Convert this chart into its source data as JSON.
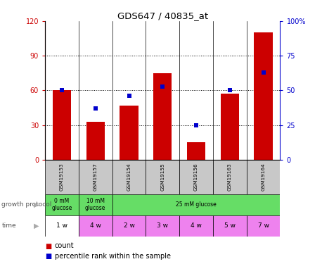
{
  "title": "GDS647 / 40835_at",
  "categories": [
    "GSM19153",
    "GSM19157",
    "GSM19154",
    "GSM19155",
    "GSM19156",
    "GSM19163",
    "GSM19164"
  ],
  "bar_values": [
    60,
    33,
    47,
    75,
    15,
    57,
    110
  ],
  "percentile_values": [
    50,
    37,
    46,
    53,
    25,
    50,
    63
  ],
  "bar_color": "#cc0000",
  "marker_color": "#0000cc",
  "left_ylim": [
    0,
    120
  ],
  "right_ylim": [
    0,
    100
  ],
  "left_yticks": [
    0,
    30,
    60,
    90,
    120
  ],
  "right_yticks": [
    0,
    25,
    50,
    75,
    100
  ],
  "right_yticklabels": [
    "0",
    "25",
    "50",
    "75",
    "100%"
  ],
  "time_labels": [
    "1 w",
    "4 w",
    "2 w",
    "3 w",
    "4 w",
    "5 w",
    "7 w"
  ],
  "time_colors": [
    "#ffffff",
    "#ee82ee",
    "#ee82ee",
    "#ee82ee",
    "#ee82ee",
    "#ee82ee",
    "#ee82ee"
  ],
  "sample_color": "#c8c8c8",
  "green_color": "#66dd66",
  "left_axis_color": "#cc0000",
  "right_axis_color": "#0000cc",
  "bar_width": 0.55,
  "proto_data": [
    [
      0,
      1,
      "0 mM\nglucose"
    ],
    [
      1,
      2,
      "10 mM\nglucose"
    ],
    [
      2,
      7,
      "25 mM glucose"
    ]
  ]
}
